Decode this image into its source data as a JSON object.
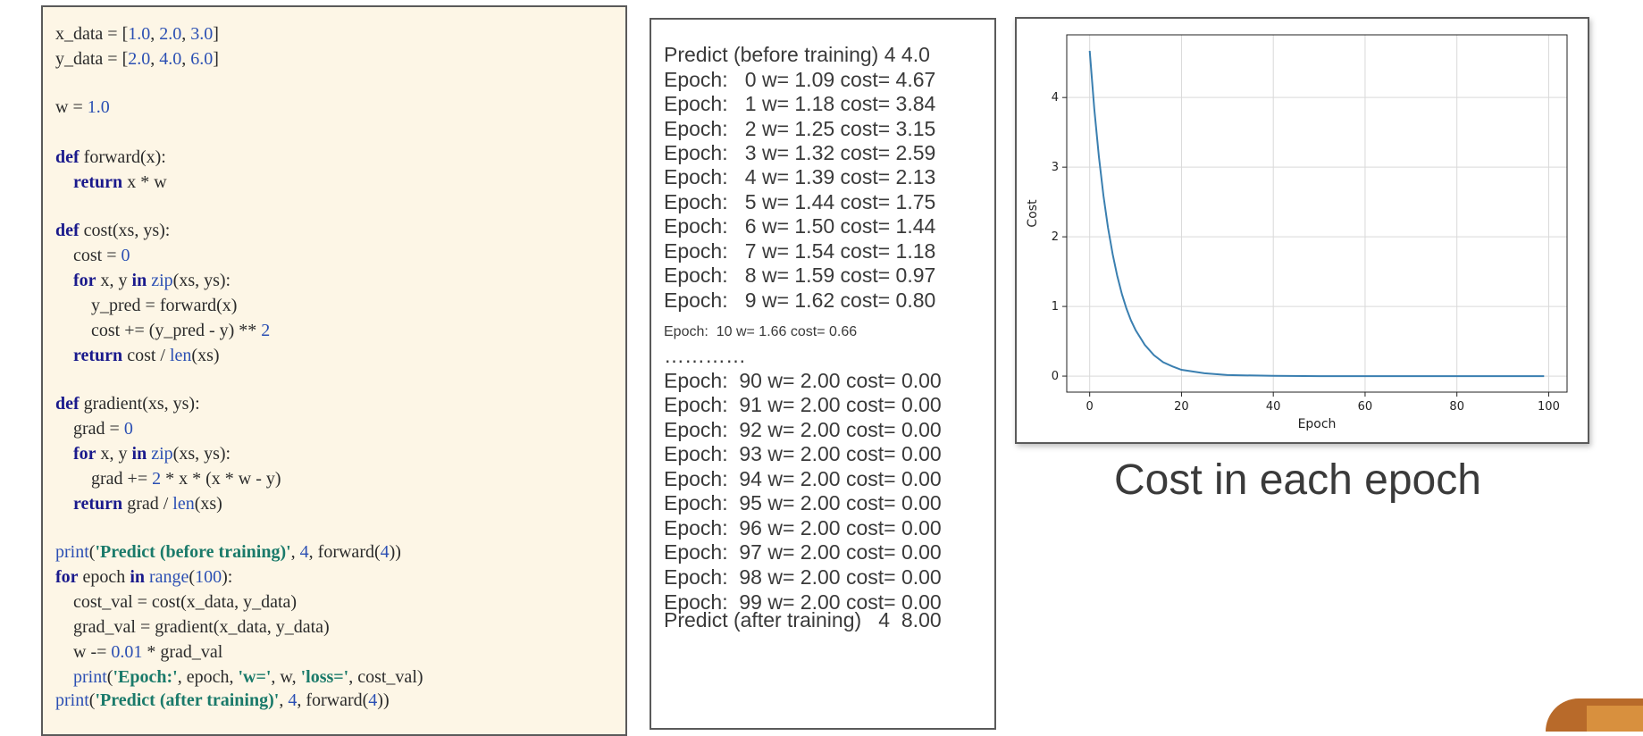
{
  "code": [
    {
      "y": 36,
      "parts": [
        [
          "t",
          "x_data = ["
        ],
        [
          "n",
          "1.0"
        ],
        [
          "t",
          ", "
        ],
        [
          "n",
          "2.0"
        ],
        [
          "t",
          ", "
        ],
        [
          "n",
          "3.0"
        ],
        [
          "t",
          "]"
        ]
      ]
    },
    {
      "y": 64,
      "parts": [
        [
          "t",
          "y_data = ["
        ],
        [
          "n",
          "2.0"
        ],
        [
          "t",
          ", "
        ],
        [
          "n",
          "4.0"
        ],
        [
          "t",
          ", "
        ],
        [
          "n",
          "6.0"
        ],
        [
          "t",
          "]"
        ]
      ]
    },
    {
      "y": 118,
      "parts": [
        [
          "t",
          "w = "
        ],
        [
          "n",
          "1.0"
        ]
      ]
    },
    {
      "y": 174,
      "parts": [
        [
          "k",
          "def"
        ],
        [
          "t",
          " forward(x):"
        ]
      ]
    },
    {
      "y": 202,
      "parts": [
        [
          "t",
          "    "
        ],
        [
          "k",
          "return"
        ],
        [
          "t",
          " x * w"
        ]
      ]
    },
    {
      "y": 256,
      "parts": [
        [
          "k",
          "def"
        ],
        [
          "t",
          " cost(xs, ys):"
        ]
      ]
    },
    {
      "y": 284,
      "parts": [
        [
          "t",
          "    cost = "
        ],
        [
          "n",
          "0"
        ]
      ]
    },
    {
      "y": 312,
      "parts": [
        [
          "t",
          "    "
        ],
        [
          "k",
          "for"
        ],
        [
          "t",
          " x, y "
        ],
        [
          "k",
          "in"
        ],
        [
          "t",
          " "
        ],
        [
          "b",
          "zip"
        ],
        [
          "t",
          "(xs, ys):"
        ]
      ]
    },
    {
      "y": 340,
      "parts": [
        [
          "t",
          "        y_pred = forward(x)"
        ]
      ]
    },
    {
      "y": 368,
      "parts": [
        [
          "t",
          "        cost += (y_pred - y) ** "
        ],
        [
          "n",
          "2"
        ]
      ]
    },
    {
      "y": 396,
      "parts": [
        [
          "t",
          "    "
        ],
        [
          "k",
          "return"
        ],
        [
          "t",
          " cost / "
        ],
        [
          "b",
          "len"
        ],
        [
          "t",
          "(xs)"
        ]
      ]
    },
    {
      "y": 450,
      "parts": [
        [
          "k",
          "def"
        ],
        [
          "t",
          " gradient(xs, ys):"
        ]
      ]
    },
    {
      "y": 478,
      "parts": [
        [
          "t",
          "    grad = "
        ],
        [
          "n",
          "0"
        ]
      ]
    },
    {
      "y": 506,
      "parts": [
        [
          "t",
          "    "
        ],
        [
          "k",
          "for"
        ],
        [
          "t",
          " x, y "
        ],
        [
          "k",
          "in"
        ],
        [
          "t",
          " "
        ],
        [
          "b",
          "zip"
        ],
        [
          "t",
          "(xs, ys):"
        ]
      ]
    },
    {
      "y": 534,
      "parts": [
        [
          "t",
          "        grad += "
        ],
        [
          "n",
          "2"
        ],
        [
          "t",
          " * x * (x * w - y)"
        ]
      ]
    },
    {
      "y": 562,
      "parts": [
        [
          "t",
          "    "
        ],
        [
          "k",
          "return"
        ],
        [
          "t",
          " grad / "
        ],
        [
          "b",
          "len"
        ],
        [
          "t",
          "(xs)"
        ]
      ]
    },
    {
      "y": 616,
      "parts": [
        [
          "b",
          "print"
        ],
        [
          "t",
          "("
        ],
        [
          "s",
          "'Predict (before training)'"
        ],
        [
          "t",
          ", "
        ],
        [
          "n",
          "4"
        ],
        [
          "t",
          ", forward("
        ],
        [
          "n",
          "4"
        ],
        [
          "t",
          "))"
        ]
      ]
    },
    {
      "y": 644,
      "parts": [
        [
          "k",
          "for"
        ],
        [
          "t",
          " epoch "
        ],
        [
          "k",
          "in"
        ],
        [
          "t",
          " "
        ],
        [
          "b",
          "range"
        ],
        [
          "t",
          "("
        ],
        [
          "n",
          "100"
        ],
        [
          "t",
          "):"
        ]
      ]
    },
    {
      "y": 672,
      "parts": [
        [
          "t",
          "    cost_val = cost(x_data, y_data)"
        ]
      ]
    },
    {
      "y": 700,
      "parts": [
        [
          "t",
          "    grad_val = gradient(x_data, y_data)"
        ]
      ]
    },
    {
      "y": 728,
      "parts": [
        [
          "t",
          "    w -= "
        ],
        [
          "n",
          "0.01"
        ],
        [
          "t",
          " * grad_val"
        ]
      ]
    },
    {
      "y": 756,
      "parts": [
        [
          "t",
          "    "
        ],
        [
          "b",
          "print"
        ],
        [
          "t",
          "("
        ],
        [
          "s",
          "'Epoch:'"
        ],
        [
          "t",
          ", epoch, "
        ],
        [
          "s",
          "'w='"
        ],
        [
          "t",
          ", w, "
        ],
        [
          "s",
          "'loss='"
        ],
        [
          "t",
          ", cost_val)"
        ]
      ]
    },
    {
      "y": 782,
      "parts": [
        [
          "b",
          "print"
        ],
        [
          "t",
          "("
        ],
        [
          "s",
          "'Predict (after training)'"
        ],
        [
          "t",
          ", "
        ],
        [
          "n",
          "4"
        ],
        [
          "t",
          ", forward("
        ],
        [
          "n",
          "4"
        ],
        [
          "t",
          "))"
        ]
      ]
    }
  ],
  "output_lines": [
    "Predict (before training) 4 4.0",
    "Epoch:   0 w= 1.09 cost= 4.67",
    "Epoch:   1 w= 1.18 cost= 3.84",
    "Epoch:   2 w= 1.25 cost= 3.15",
    "Epoch:   3 w= 1.32 cost= 2.59",
    "Epoch:   4 w= 1.39 cost= 2.13",
    "Epoch:   5 w= 1.44 cost= 1.75",
    "Epoch:   6 w= 1.50 cost= 1.44",
    "Epoch:   7 w= 1.54 cost= 1.18",
    "Epoch:   8 w= 1.59 cost= 0.97",
    "Epoch:   9 w= 1.62 cost= 0.80",
    "Epoch:  10 w= 1.66 cost= 0.66",
    "…………",
    "Epoch:  90 w= 2.00 cost= 0.00",
    "Epoch:  91 w= 2.00 cost= 0.00",
    "Epoch:  92 w= 2.00 cost= 0.00",
    "Epoch:  93 w= 2.00 cost= 0.00",
    "Epoch:  94 w= 2.00 cost= 0.00",
    "Epoch:  95 w= 2.00 cost= 0.00",
    "Epoch:  96 w= 2.00 cost= 0.00",
    "Epoch:  97 w= 2.00 cost= 0.00",
    "Epoch:  98 w= 2.00 cost= 0.00",
    "Epoch:  99 w= 2.00 cost= 0.00",
    "Predict (after training)   4  8.00"
  ],
  "caption": "Cost in each epoch",
  "chart_data": {
    "type": "line",
    "title": "",
    "xlabel": "Epoch",
    "ylabel": "Cost",
    "xlim": [
      -5,
      104
    ],
    "ylim": [
      -0.23,
      4.9
    ],
    "x_ticks": [
      0,
      20,
      40,
      60,
      80,
      100
    ],
    "y_ticks": [
      0,
      1,
      2,
      3,
      4
    ],
    "grid": true,
    "legend": "none",
    "series_color": "#3a7fb0",
    "x": [
      0,
      1,
      2,
      3,
      4,
      5,
      6,
      7,
      8,
      9,
      10,
      12,
      14,
      16,
      18,
      20,
      25,
      30,
      40,
      50,
      60,
      70,
      80,
      90,
      99
    ],
    "y": [
      4.67,
      3.84,
      3.15,
      2.59,
      2.13,
      1.75,
      1.44,
      1.18,
      0.97,
      0.8,
      0.66,
      0.45,
      0.3,
      0.2,
      0.14,
      0.09,
      0.04,
      0.015,
      0.003,
      0.0,
      0.0,
      0.0,
      0.0,
      0.0,
      0.0
    ]
  },
  "colors": {
    "code_bg": "#fdf6e6",
    "keyword": "#1a1a8c",
    "number": "#2b4fb3",
    "string": "#1a7a6a"
  }
}
